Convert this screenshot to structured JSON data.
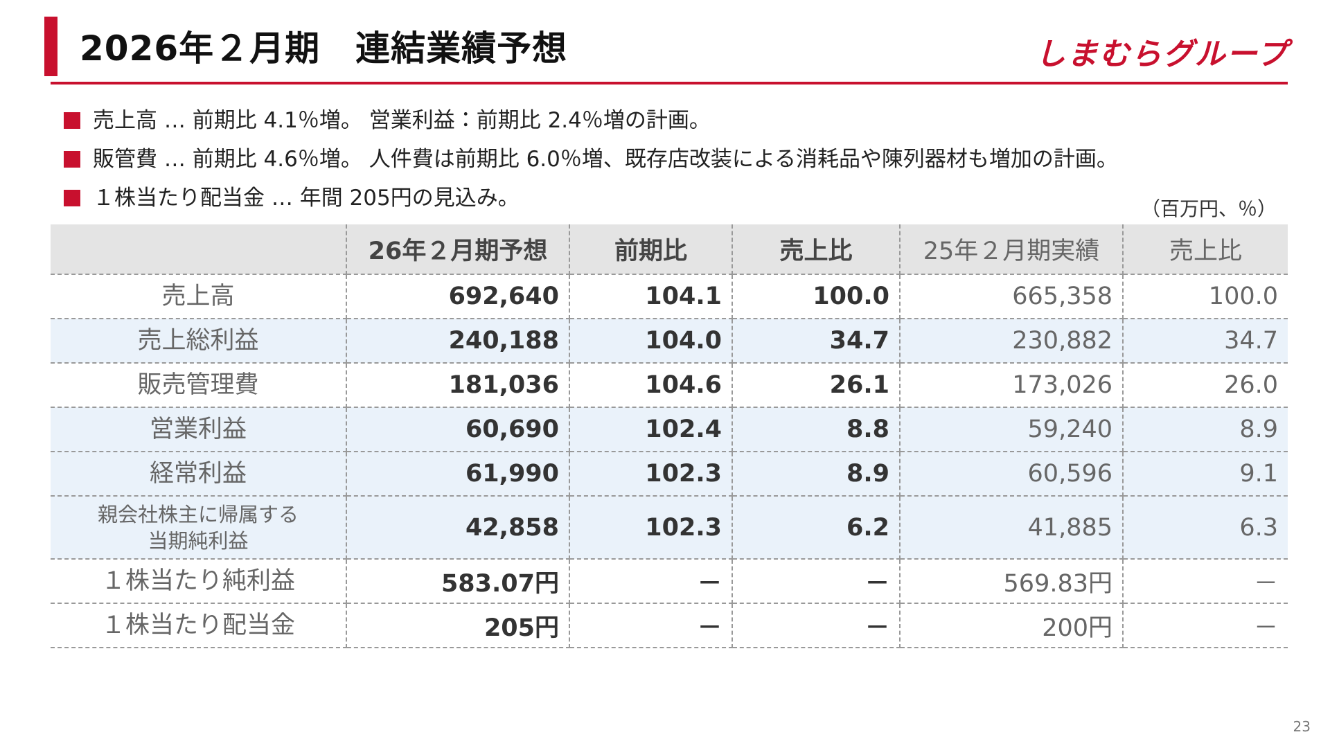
{
  "header": {
    "title": "2026年２月期　連結業績予想",
    "logo": "しまむらグループ"
  },
  "bullets": [
    "売上高 … 前期比 4.1％増。 営業利益：前期比 2.4％増の計画。",
    "販管費 … 前期比 4.6％増。 人件費は前期比 6.0％増、既存店改装による消耗品や陳列器材も増加の計画。",
    "１株当たり配当金 … 年間 205円の見込み。"
  ],
  "unit_note": "（百万円、％）",
  "table": {
    "columns": [
      "26年２月期予想",
      "前期比",
      "売上比",
      "25年２月期実績",
      "売上比"
    ],
    "rows": [
      [
        "売上高",
        "692,640",
        "104.1",
        "100.0",
        "665,358",
        "100.0"
      ],
      [
        "売上総利益",
        "240,188",
        "104.0",
        "34.7",
        "230,882",
        "34.7"
      ],
      [
        "販売管理費",
        "181,036",
        "104.6",
        "26.1",
        "173,026",
        "26.0"
      ],
      [
        "営業利益",
        "60,690",
        "102.4",
        "8.8",
        "59,240",
        "8.9"
      ],
      [
        "経常利益",
        "61,990",
        "102.3",
        "8.9",
        "60,596",
        "9.1"
      ],
      [
        "親会社株主に帰属する\n当期純利益",
        "42,858",
        "102.3",
        "6.2",
        "41,885",
        "6.3"
      ],
      [
        "１株当たり純利益",
        "583.07円",
        "－",
        "－",
        "569.83円",
        "－"
      ],
      [
        "１株当たり配当金",
        "205円",
        "－",
        "－",
        "200円",
        "－"
      ]
    ]
  },
  "page_number": "23"
}
